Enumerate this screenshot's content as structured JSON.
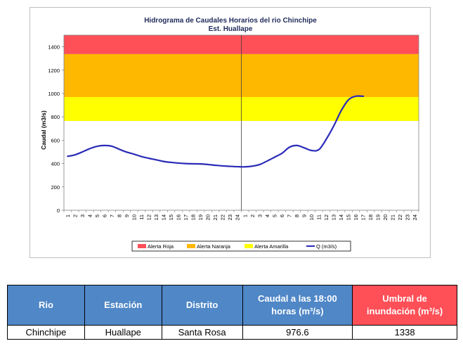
{
  "chart_data": {
    "type": "line",
    "title": "Hidrograma de Caudales Horarios del rio Chinchipe",
    "subtitle": "Est. Huallape",
    "ylabel": "Caudal  (m3/s)",
    "xlabel": "",
    "ylim": [
      0,
      1500
    ],
    "yticks": [
      "0",
      "200",
      "400",
      "600",
      "800",
      "1000",
      "1200",
      "1400"
    ],
    "ytick_values": [
      0,
      200,
      400,
      600,
      800,
      1000,
      1200,
      1400
    ],
    "x_tick_labels": [
      "1",
      "2",
      "3",
      "4",
      "5",
      "6",
      "7",
      "8",
      "9",
      "10",
      "11",
      "12",
      "13",
      "14",
      "15",
      "16",
      "17",
      "18",
      "19",
      "20",
      "21",
      "22",
      "23",
      "24",
      "1",
      "2",
      "3",
      "4",
      "5",
      "6",
      "7",
      "8",
      "9",
      "10",
      "11",
      "12",
      "13",
      "14",
      "15",
      "16",
      "17",
      "18",
      "19",
      "20",
      "21",
      "22",
      "23",
      "24"
    ],
    "x_count": 48,
    "day_divider_after_index": 23,
    "bands": [
      {
        "name": "Alerta Amarilla",
        "from": 765,
        "to": 970,
        "color": "#ffff00"
      },
      {
        "name": "Alerta Naranja",
        "from": 970,
        "to": 1338,
        "color": "#ffb800"
      },
      {
        "name": "Alerta Roja",
        "from": 1338,
        "to": 1500,
        "color": "#ff4f57"
      }
    ],
    "series": [
      {
        "name": "Q (m3/s)",
        "color": "#2a2ab8",
        "values": [
          462,
          475,
          500,
          528,
          548,
          555,
          548,
          522,
          498,
          480,
          460,
          445,
          432,
          418,
          410,
          404,
          400,
          398,
          397,
          392,
          385,
          380,
          376,
          373,
          372,
          378,
          392,
          422,
          455,
          488,
          540,
          555,
          535,
          512,
          520,
          610,
          722,
          852,
          946,
          977,
          976.6
        ]
      }
    ],
    "legend": {
      "placement": "bottom",
      "entries": [
        {
          "label": "Alerta Roja",
          "kind": "box",
          "color": "#ff4f57"
        },
        {
          "label": "Alerta Naranja",
          "kind": "box",
          "color": "#ffb800"
        },
        {
          "label": "Alerta Amarilla",
          "kind": "box",
          "color": "#ffff00"
        },
        {
          "label": "Q (m3/s)",
          "kind": "line",
          "color": "#2a2ab8"
        }
      ]
    },
    "grid": false
  },
  "table": {
    "headers": [
      "Rio",
      "Estación",
      "Distrito",
      "Caudal a las 18:00 horas (m³/s)",
      "Umbral de inundación (m³/s)"
    ],
    "row": [
      "Chinchipe",
      "Huallape",
      "Santa Rosa",
      "976.6",
      "1338"
    ]
  }
}
